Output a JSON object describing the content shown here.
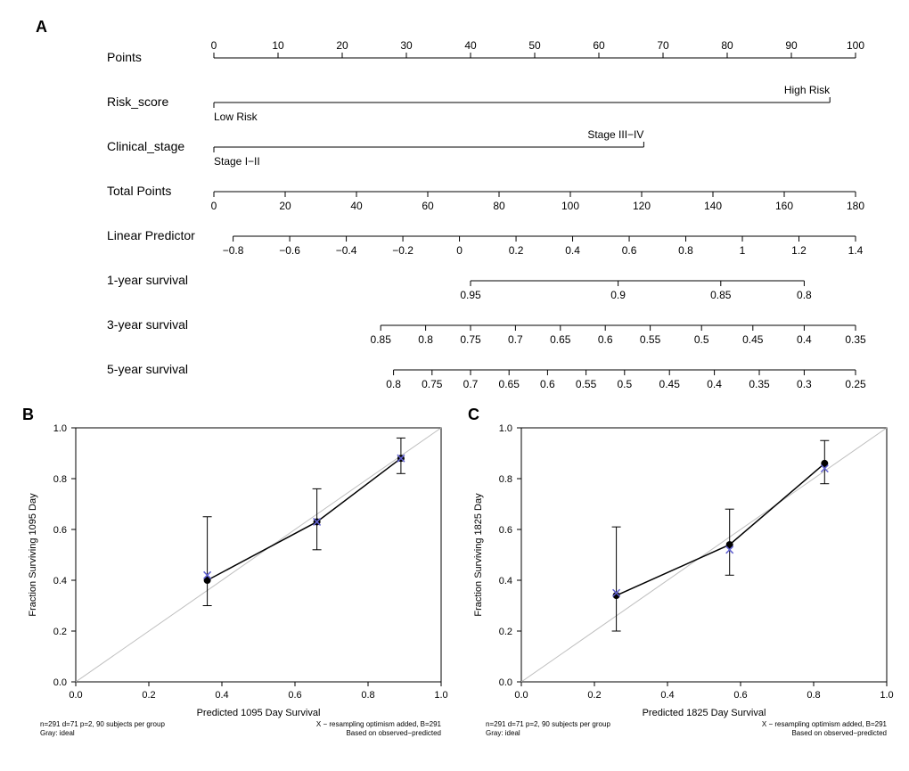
{
  "panelA": {
    "label": "A",
    "rows": [
      {
        "name": "Points",
        "type": "axis",
        "min": 0,
        "max": 100,
        "step": 10,
        "labels": [
          "0",
          "10",
          "20",
          "30",
          "40",
          "50",
          "60",
          "70",
          "80",
          "90",
          "100"
        ]
      },
      {
        "name": "Risk_score",
        "type": "bracket",
        "left_label": "Low Risk",
        "right_label": "High Risk",
        "left_pos": 0,
        "right_pos": 96
      },
      {
        "name": "Clinical_stage",
        "type": "bracket",
        "left_label": "Stage I−II",
        "right_label": "Stage III−IV",
        "left_pos": 0,
        "right_pos": 67
      },
      {
        "name": "Total Points",
        "type": "axis",
        "min": 0,
        "max": 180,
        "step": 20,
        "labels": [
          "0",
          "20",
          "40",
          "60",
          "80",
          "100",
          "120",
          "140",
          "160",
          "180"
        ]
      },
      {
        "name": "Linear Predictor",
        "type": "axis",
        "min": -0.8,
        "max": 1.4,
        "step": 0.2,
        "shift_pct": 3,
        "labels": [
          "−0.8",
          "−0.6",
          "−0.4",
          "−0.2",
          "0",
          "0.2",
          "0.4",
          "0.6",
          "0.8",
          "1",
          "1.2",
          "1.4"
        ]
      },
      {
        "name": "1-year survival",
        "type": "axis_short",
        "start_pct": 40,
        "end_pct": 92,
        "labels": [
          "0.95",
          "0.9",
          "0.85",
          "0.8"
        ],
        "positions": [
          40,
          63,
          79,
          92
        ]
      },
      {
        "name": "3-year survival",
        "type": "axis_short",
        "start_pct": 26,
        "end_pct": 100,
        "labels": [
          "0.85",
          "0.8",
          "0.75",
          "0.7",
          "0.65",
          "0.6",
          "0.55",
          "0.5",
          "0.45",
          "0.4",
          "0.35"
        ],
        "positions": [
          26,
          33,
          40,
          47,
          54,
          61,
          68,
          76,
          84,
          92,
          100
        ]
      },
      {
        "name": "5-year survival",
        "type": "axis_short",
        "start_pct": 28,
        "end_pct": 100,
        "labels": [
          "0.8",
          "0.75",
          "0.7",
          "0.65",
          "0.6",
          "0.55",
          "0.5",
          "0.45",
          "0.4",
          "0.35",
          "0.3",
          "0.25"
        ],
        "positions": [
          28,
          34,
          40,
          46,
          52,
          58,
          64,
          71,
          78,
          85,
          92,
          100
        ]
      }
    ],
    "font_size_label": 14,
    "font_size_tick": 12,
    "text_color": "#000000",
    "line_color": "#000000"
  },
  "panelB": {
    "label": "B",
    "xlabel": "Predicted  1095 Day Survival",
    "ylabel": "Fraction Surviving 1095 Day",
    "xlim": [
      0,
      1
    ],
    "ylim": [
      0,
      1
    ],
    "xticks": [
      0.0,
      0.2,
      0.4,
      0.6,
      0.8,
      1.0
    ],
    "yticks": [
      0.0,
      0.2,
      0.4,
      0.6,
      0.8,
      1.0
    ],
    "footer_left": "n=291 d=71 p=2, 90 subjects per group\nGray: ideal",
    "footer_right": "X − resampling optimism added, B=291\nBased on observed−predicted",
    "ideal_color": "#bfbfbf",
    "line_color": "#000000",
    "x_color": "#6060d0",
    "points": [
      {
        "x": 0.36,
        "y": 0.4,
        "lo": 0.3,
        "hi": 0.65,
        "xmark": 0.42
      },
      {
        "x": 0.66,
        "y": 0.63,
        "lo": 0.52,
        "hi": 0.76,
        "xmark": 0.63
      },
      {
        "x": 0.89,
        "y": 0.88,
        "lo": 0.82,
        "hi": 0.96,
        "xmark": 0.88
      }
    ],
    "font_size_axis": 11,
    "font_size_footer": 8
  },
  "panelC": {
    "label": "C",
    "xlabel": "Predicted  1825 Day Survival",
    "ylabel": "Fraction Surviving 1825 Day",
    "xlim": [
      0,
      1
    ],
    "ylim": [
      0,
      1
    ],
    "xticks": [
      0.0,
      0.2,
      0.4,
      0.6,
      0.8,
      1.0
    ],
    "yticks": [
      0.0,
      0.2,
      0.4,
      0.6,
      0.8,
      1.0
    ],
    "footer_left": "n=291 d=71 p=2, 90 subjects per group\nGray: ideal",
    "footer_right": "X − resampling optimism added, B=291\nBased on observed−predicted",
    "ideal_color": "#bfbfbf",
    "line_color": "#000000",
    "x_color": "#6060d0",
    "points": [
      {
        "x": 0.26,
        "y": 0.34,
        "lo": 0.2,
        "hi": 0.61,
        "xmark": 0.35
      },
      {
        "x": 0.57,
        "y": 0.54,
        "lo": 0.42,
        "hi": 0.68,
        "xmark": 0.52
      },
      {
        "x": 0.83,
        "y": 0.86,
        "lo": 0.78,
        "hi": 0.95,
        "xmark": 0.84
      }
    ],
    "font_size_axis": 11,
    "font_size_footer": 8
  },
  "background": "#ffffff"
}
